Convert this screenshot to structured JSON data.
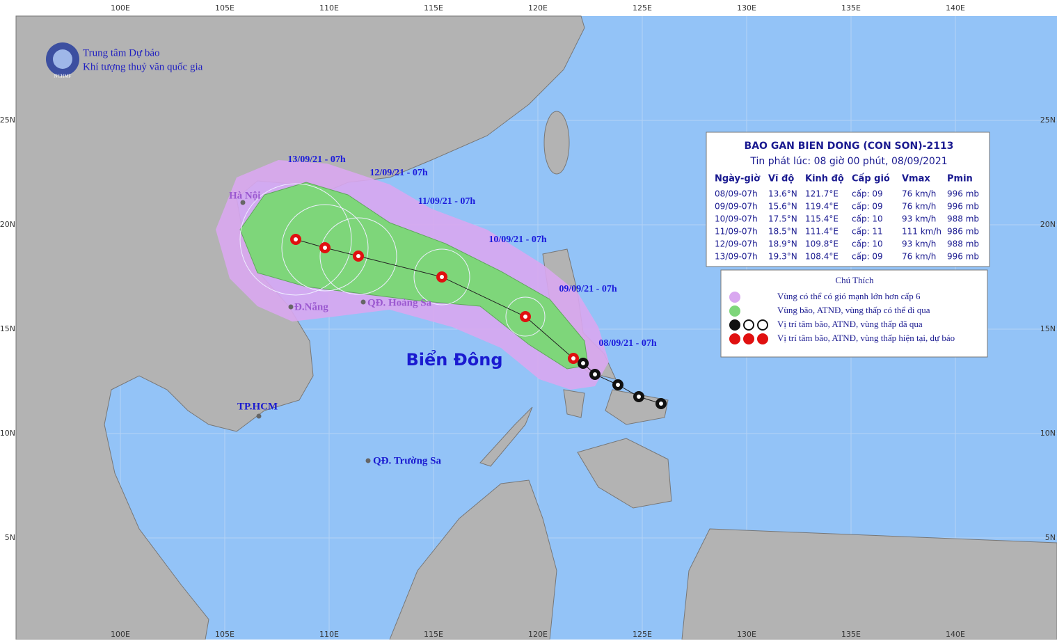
{
  "logo": {
    "short": "NCHMF",
    "line1": "Trung tâm Dự báo",
    "line2": "Khí tượng thuỷ văn quốc gia"
  },
  "axes": {
    "lon_labels": [
      "100E",
      "105E",
      "110E",
      "115E",
      "120E",
      "125E",
      "130E",
      "135E",
      "140E"
    ],
    "lat_labels": [
      "25N",
      "20N",
      "15N",
      "10N",
      "5N"
    ]
  },
  "track_labels": [
    "13/09/21 - 07h",
    "12/09/21 - 07h",
    "11/09/21 - 07h",
    "10/09/21 - 07h",
    "09/09/21 - 07h",
    "08/09/21 - 07h"
  ],
  "places": [
    "Hà Nội",
    "Đ.Nẵng",
    "QĐ. Hoàng Sa",
    "TP.HCM",
    "QĐ. Trường Sa"
  ],
  "sea_name": "Biển Đông",
  "info": {
    "title": "BAO GAN BIEN DONG (CON SON)-2113",
    "subtitle": "Tin phát lúc: 08 giờ 00 phút, 08/09/2021",
    "columns": [
      "Ngày-giờ",
      "Vĩ độ",
      "Kinh độ",
      "Cấp gió",
      "Vmax",
      "Pmin"
    ],
    "rows": [
      [
        "08/09-07h",
        "13.6°N",
        "121.7°E",
        "cấp: 09",
        "76 km/h",
        "996 mb"
      ],
      [
        "09/09-07h",
        "15.6°N",
        "119.4°E",
        "cấp: 09",
        "76 km/h",
        "996 mb"
      ],
      [
        "10/09-07h",
        "17.5°N",
        "115.4°E",
        "cấp: 10",
        "93 km/h",
        "988 mb"
      ],
      [
        "11/09-07h",
        "18.5°N",
        "111.4°E",
        "cấp: 11",
        "111 km/h",
        "986 mb"
      ],
      [
        "12/09-07h",
        "18.9°N",
        "109.8°E",
        "cấp: 10",
        "93 km/h",
        "988 mb"
      ],
      [
        "13/09-07h",
        "19.3°N",
        "108.4°E",
        "cấp: 09",
        "76 km/h",
        "996 mb"
      ]
    ]
  },
  "legend": {
    "title": "Chú Thích",
    "items": [
      "Vùng có thể có gió mạnh lớn hơn cấp 6",
      "Vùng bão, ATNĐ, vùng thấp có thể đi qua",
      "Vị trí tâm bão, ATNĐ, vùng thấp đã qua",
      "Vị trí tâm bão, ATNĐ, vùng thấp hiện tại, dự báo"
    ]
  }
}
